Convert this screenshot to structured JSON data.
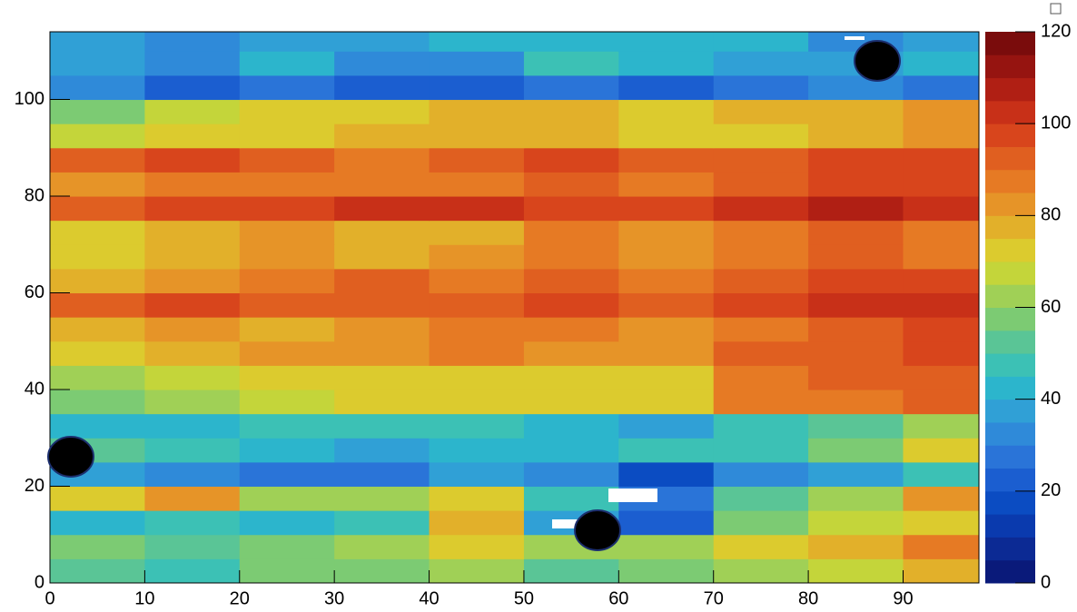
{
  "chart_data": {
    "type": "heatmap",
    "xbins": [
      0,
      10,
      20,
      30,
      40,
      50,
      60,
      70,
      80,
      90,
      98
    ],
    "ybins": [
      0,
      5,
      10,
      15,
      20,
      25,
      30,
      35,
      40,
      45,
      50,
      55,
      60,
      65,
      70,
      75,
      80,
      85,
      90,
      95,
      100,
      105,
      110,
      114
    ],
    "z": [
      [
        50,
        45,
        55,
        55,
        60,
        50,
        55,
        60,
        65,
        75
      ],
      [
        55,
        50,
        55,
        60,
        70,
        60,
        60,
        70,
        75,
        85
      ],
      [
        40,
        45,
        40,
        45,
        75,
        35,
        20,
        55,
        65,
        70
      ],
      [
        70,
        80,
        60,
        60,
        70,
        45,
        25,
        50,
        60,
        80
      ],
      [
        35,
        30,
        25,
        25,
        35,
        30,
        15,
        30,
        35,
        45
      ],
      [
        50,
        45,
        40,
        35,
        40,
        40,
        45,
        45,
        55,
        70
      ],
      [
        40,
        40,
        45,
        45,
        45,
        40,
        35,
        45,
        50,
        60
      ],
      [
        55,
        60,
        65,
        70,
        70,
        70,
        70,
        85,
        85,
        90
      ],
      [
        60,
        65,
        70,
        70,
        70,
        70,
        70,
        85,
        90,
        90
      ],
      [
        70,
        75,
        80,
        80,
        85,
        80,
        80,
        90,
        90,
        95
      ],
      [
        75,
        80,
        75,
        80,
        85,
        85,
        80,
        85,
        90,
        95
      ],
      [
        90,
        95,
        90,
        90,
        90,
        95,
        90,
        95,
        100,
        100
      ],
      [
        75,
        80,
        85,
        90,
        85,
        90,
        85,
        90,
        95,
        95
      ],
      [
        70,
        75,
        80,
        75,
        80,
        85,
        80,
        85,
        90,
        85
      ],
      [
        70,
        75,
        80,
        75,
        75,
        85,
        80,
        85,
        90,
        85
      ],
      [
        90,
        95,
        95,
        100,
        100,
        95,
        95,
        100,
        105,
        100
      ],
      [
        80,
        85,
        85,
        85,
        85,
        90,
        85,
        90,
        95,
        95
      ],
      [
        90,
        95,
        90,
        85,
        90,
        95,
        90,
        90,
        95,
        95
      ],
      [
        65,
        70,
        70,
        75,
        75,
        75,
        70,
        70,
        75,
        80
      ],
      [
        55,
        65,
        70,
        70,
        75,
        75,
        70,
        75,
        75,
        80
      ],
      [
        30,
        20,
        25,
        20,
        20,
        25,
        20,
        25,
        30,
        25
      ],
      [
        35,
        30,
        40,
        30,
        30,
        45,
        40,
        35,
        35,
        40
      ],
      [
        35,
        30,
        35,
        35,
        40,
        40,
        40,
        40,
        30,
        35
      ]
    ],
    "xlim": [
      0,
      98
    ],
    "ylim": [
      0,
      114
    ],
    "xticks": [
      0,
      10,
      20,
      30,
      40,
      50,
      60,
      70,
      80,
      90
    ],
    "yticks": [
      0,
      20,
      40,
      60,
      80,
      100
    ],
    "clim": [
      0,
      120
    ],
    "cticks": [
      0,
      20,
      40,
      60,
      80,
      100,
      120
    ],
    "colorscale": [
      "#0a1a7a",
      "#0c2a94",
      "#0a3aae",
      "#0b4cc2",
      "#1b5ed0",
      "#2a74d8",
      "#2f8ad9",
      "#30a0d6",
      "#2cb5cc",
      "#3cc1b5",
      "#5ac596",
      "#7ccb73",
      "#a0d056",
      "#c4d53a",
      "#dccb2e",
      "#e2b02a",
      "#e69428",
      "#e67a24",
      "#e05f20",
      "#d8451c",
      "#c83018",
      "#b01f14",
      "#961410",
      "#7a0c0c"
    ]
  }
}
